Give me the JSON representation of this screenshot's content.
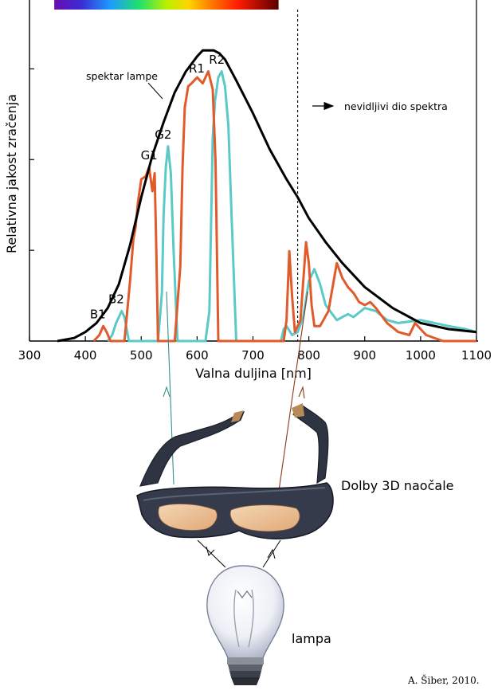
{
  "chart_data": {
    "type": "line",
    "title": "",
    "xlabel": "Valna duljina [nm]",
    "ylabel": "Relativna jakost zračenja",
    "xlim": [
      300,
      1100
    ],
    "ylim": [
      0,
      1
    ],
    "x_ticks": [
      300,
      400,
      500,
      600,
      700,
      800,
      900,
      1000,
      1100
    ],
    "visible_spectrum_bar": {
      "from_nm": 380,
      "to_nm": 780
    },
    "invisible_boundary_nm": 780,
    "series": [
      {
        "name": "spektar lampe",
        "color": "#000000",
        "x": [
          350,
          380,
          400,
          420,
          440,
          460,
          480,
          500,
          520,
          540,
          560,
          580,
          600,
          610,
          620,
          630,
          640,
          650,
          670,
          700,
          730,
          760,
          780,
          800,
          830,
          860,
          900,
          950,
          1000,
          1050,
          1100
        ],
        "y": [
          0.0,
          0.01,
          0.03,
          0.06,
          0.11,
          0.19,
          0.32,
          0.48,
          0.62,
          0.73,
          0.83,
          0.9,
          0.95,
          0.97,
          0.97,
          0.97,
          0.96,
          0.94,
          0.87,
          0.76,
          0.64,
          0.54,
          0.48,
          0.41,
          0.33,
          0.26,
          0.18,
          0.11,
          0.06,
          0.04,
          0.03
        ]
      },
      {
        "name": "",
        "color": "#e05a2b",
        "x": [
          415,
          425,
          432,
          438,
          445,
          455,
          470,
          480,
          486,
          490,
          494,
          500,
          508,
          514,
          520,
          524,
          527,
          530,
          534,
          560,
          570,
          574,
          578,
          584,
          590,
          600,
          610,
          620,
          628,
          633,
          638,
          700,
          755,
          760,
          765,
          770,
          775,
          785,
          790,
          795,
          800,
          805,
          810,
          820,
          835,
          850,
          860,
          870,
          880,
          890,
          900,
          910,
          920,
          940,
          960,
          980,
          990,
          1000,
          1010,
          1040,
          1100
        ],
        "y": [
          0.0,
          0.02,
          0.05,
          0.03,
          0.0,
          0.0,
          0.0,
          0.2,
          0.34,
          0.38,
          0.46,
          0.54,
          0.55,
          0.58,
          0.5,
          0.56,
          0.3,
          0.0,
          0.0,
          0.0,
          0.25,
          0.58,
          0.78,
          0.85,
          0.86,
          0.88,
          0.86,
          0.9,
          0.84,
          0.6,
          0.0,
          0.0,
          0.0,
          0.07,
          0.3,
          0.15,
          0.03,
          0.07,
          0.2,
          0.33,
          0.26,
          0.12,
          0.05,
          0.05,
          0.1,
          0.26,
          0.21,
          0.18,
          0.16,
          0.13,
          0.12,
          0.13,
          0.11,
          0.06,
          0.03,
          0.02,
          0.06,
          0.04,
          0.02,
          0.0,
          0.0
        ]
      },
      {
        "name": "",
        "color": "#5bc9c8",
        "x": [
          440,
          448,
          455,
          460,
          465,
          470,
          478,
          530,
          537,
          540,
          544,
          548,
          553,
          558,
          565,
          615,
          622,
          628,
          632,
          638,
          644,
          650,
          656,
          662,
          670,
          750,
          755,
          760,
          770,
          780,
          790,
          800,
          810,
          820,
          830,
          850,
          870,
          880,
          900,
          920,
          940,
          960,
          1000,
          1050,
          1080,
          1100
        ],
        "y": [
          0.0,
          0.02,
          0.06,
          0.08,
          0.1,
          0.08,
          0.0,
          0.0,
          0.16,
          0.42,
          0.58,
          0.65,
          0.56,
          0.3,
          0.0,
          0.0,
          0.1,
          0.68,
          0.8,
          0.88,
          0.9,
          0.85,
          0.72,
          0.4,
          0.0,
          0.0,
          0.04,
          0.05,
          0.02,
          0.03,
          0.08,
          0.2,
          0.24,
          0.19,
          0.12,
          0.07,
          0.09,
          0.08,
          0.11,
          0.1,
          0.07,
          0.06,
          0.07,
          0.05,
          0.04,
          0.03
        ]
      }
    ],
    "annotations": [
      {
        "label": "B1",
        "x": 431,
        "y": 0.06
      },
      {
        "label": "B2",
        "x": 464,
        "y": 0.11
      },
      {
        "label": "G1",
        "x": 522,
        "y": 0.59
      },
      {
        "label": "G2",
        "x": 547,
        "y": 0.66
      },
      {
        "label": "R1",
        "x": 608,
        "y": 0.88
      },
      {
        "label": "R2",
        "x": 644,
        "y": 0.91
      }
    ],
    "lamp_label": "spektar lampe",
    "invisible_label": "nevidljivi dio spektra"
  },
  "diagram": {
    "glasses_label": "Dolby 3D naočale",
    "lamp_label": "lampa",
    "credit": "A. Šiber, 2010."
  }
}
